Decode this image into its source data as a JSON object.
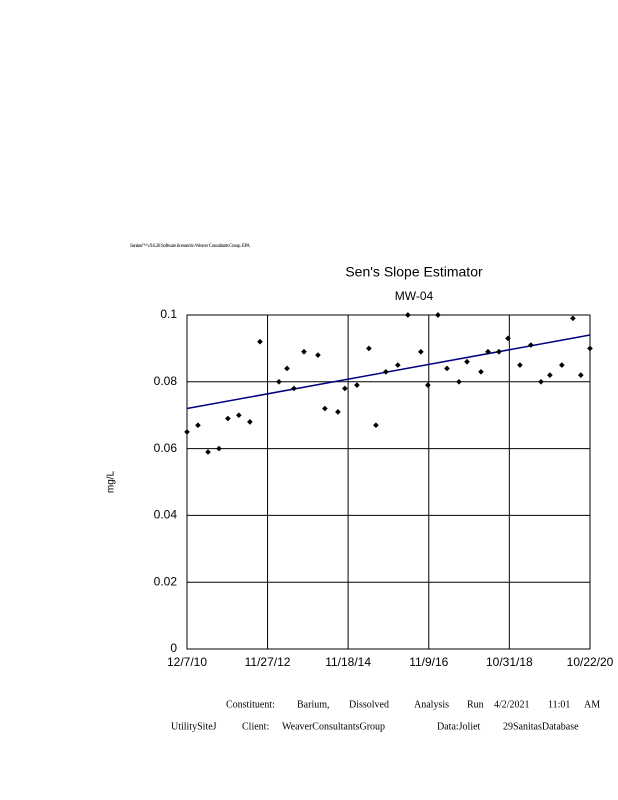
{
  "chart_data": {
    "type": "scatter",
    "title": "Sen's Slope Estimator",
    "subtitle": "MW-04",
    "y_label": "mg/L",
    "header": "Sanitas™ v.9.6.28 Software licensed to Weaver Consultants Group. EPA",
    "footer": [
      [
        "Constituent:",
        "Barium,",
        "Dissolved",
        "Analysis",
        "Run",
        "4/2/2021",
        "11:01",
        "AM"
      ],
      [
        "UtilitySiteJ",
        "Client:",
        "WeaverConsultantsGroup",
        "Data:Joliet",
        "29SanitasDatabase"
      ]
    ],
    "xlim": [
      "12/7/10",
      "10/22/20"
    ],
    "xticks": [
      "12/7/10",
      "11/27/12",
      "11/18/14",
      "11/9/16",
      "10/31/18",
      "10/22/20"
    ],
    "ylim": [
      0,
      0.1
    ],
    "yticks": [
      0,
      0.02,
      0.04,
      0.06,
      0.08,
      0.1
    ],
    "grid": true,
    "color": "#000000",
    "x": [
      "12/7/10",
      "3/15/11",
      "6/13/11",
      "9/19/11",
      "12/8/11",
      "3/15/12",
      "6/22/12",
      "9/20/12",
      "3/9/13",
      "5/20/13",
      "7/21/13",
      "10/19/13",
      "2/21/14",
      "4/24/14",
      "8/19/14",
      "10/20/14",
      "2/5/15",
      "5/23/15",
      "7/25/15",
      "10/22/15",
      "2/6/16",
      "5/6/16",
      "8/30/16",
      "11/1/16",
      "1/30/17",
      "4/21/17",
      "8/6/17",
      "10/17/17",
      "2/19/18",
      "4/23/18",
      "7/30/18",
      "10/19/18",
      "2/3/19",
      "5/12/19",
      "8/10/19",
      "10/29/19",
      "2/13/20",
      "5/22/20",
      "8/1/20",
      "10/22/20"
    ],
    "values": [
      0.065,
      0.067,
      0.059,
      0.06,
      0.069,
      0.07,
      0.068,
      0.092,
      0.08,
      0.084,
      0.078,
      0.089,
      0.088,
      0.072,
      0.071,
      0.078,
      0.079,
      0.09,
      0.067,
      0.083,
      0.085,
      0.1,
      0.089,
      0.079,
      0.1,
      0.084,
      0.08,
      0.086,
      0.083,
      0.089,
      0.089,
      0.093,
      0.085,
      0.091,
      0.08,
      0.082,
      0.085,
      0.099,
      0.082,
      0.09
    ],
    "trend_line": {
      "x": [
        "12/7/10",
        "10/22/20"
      ],
      "values": [
        0.072,
        0.094
      ],
      "color": "#000080"
    }
  }
}
